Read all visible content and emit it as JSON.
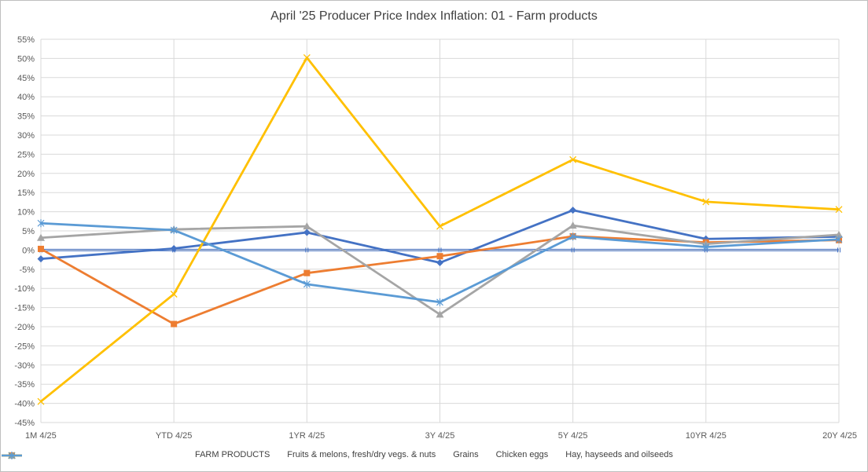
{
  "chart_data": {
    "type": "line",
    "title": "April '25 Producer Price Index Inflation: 01 - Farm products",
    "xlabel": "",
    "ylabel": "",
    "categories": [
      "1M 4/25",
      "YTD  4/25",
      "1YR 4/25",
      "3Y 4/25",
      "5Y 4/25",
      "10YR  4/25",
      "20Y 4/25"
    ],
    "y_ticks": [
      "55%",
      "50%",
      "45%",
      "40%",
      "35%",
      "30%",
      "25%",
      "20%",
      "15%",
      "10%",
      "5%",
      "0%",
      "-5%",
      "-10%",
      "-15%",
      "-20%",
      "-25%",
      "-30%",
      "-35%",
      "-40%",
      "-45%"
    ],
    "ylim": [
      -45,
      55
    ],
    "grid": true,
    "legend_position": "bottom",
    "series": [
      {
        "name": "FARM PRODUCTS",
        "color": "#4472C4",
        "marker": "diamond",
        "values": [
          -2.3,
          0.4,
          4.6,
          -3.3,
          10.4,
          2.9,
          3.5
        ]
      },
      {
        "name": "Fruits & melons, fresh/dry vegs. & nuts",
        "color": "#ED7D31",
        "marker": "square",
        "values": [
          0.3,
          -19.3,
          -6.0,
          -1.6,
          3.6,
          2.0,
          2.6
        ]
      },
      {
        "name": "Grains",
        "color": "#A5A5A5",
        "marker": "triangle",
        "values": [
          3.2,
          5.4,
          6.2,
          -16.8,
          6.4,
          1.6,
          4.0
        ]
      },
      {
        "name": "Chicken eggs",
        "color": "#FFC000",
        "marker": "x",
        "values": [
          -39.5,
          -11.5,
          50.2,
          6.2,
          23.6,
          12.6,
          10.6
        ]
      },
      {
        "name": "Hay, hayseeds and oilseeds",
        "color": "#5B9BD5",
        "marker": "star",
        "values": [
          7.0,
          5.2,
          -8.9,
          -13.6,
          3.5,
          0.8,
          2.8
        ]
      }
    ]
  }
}
